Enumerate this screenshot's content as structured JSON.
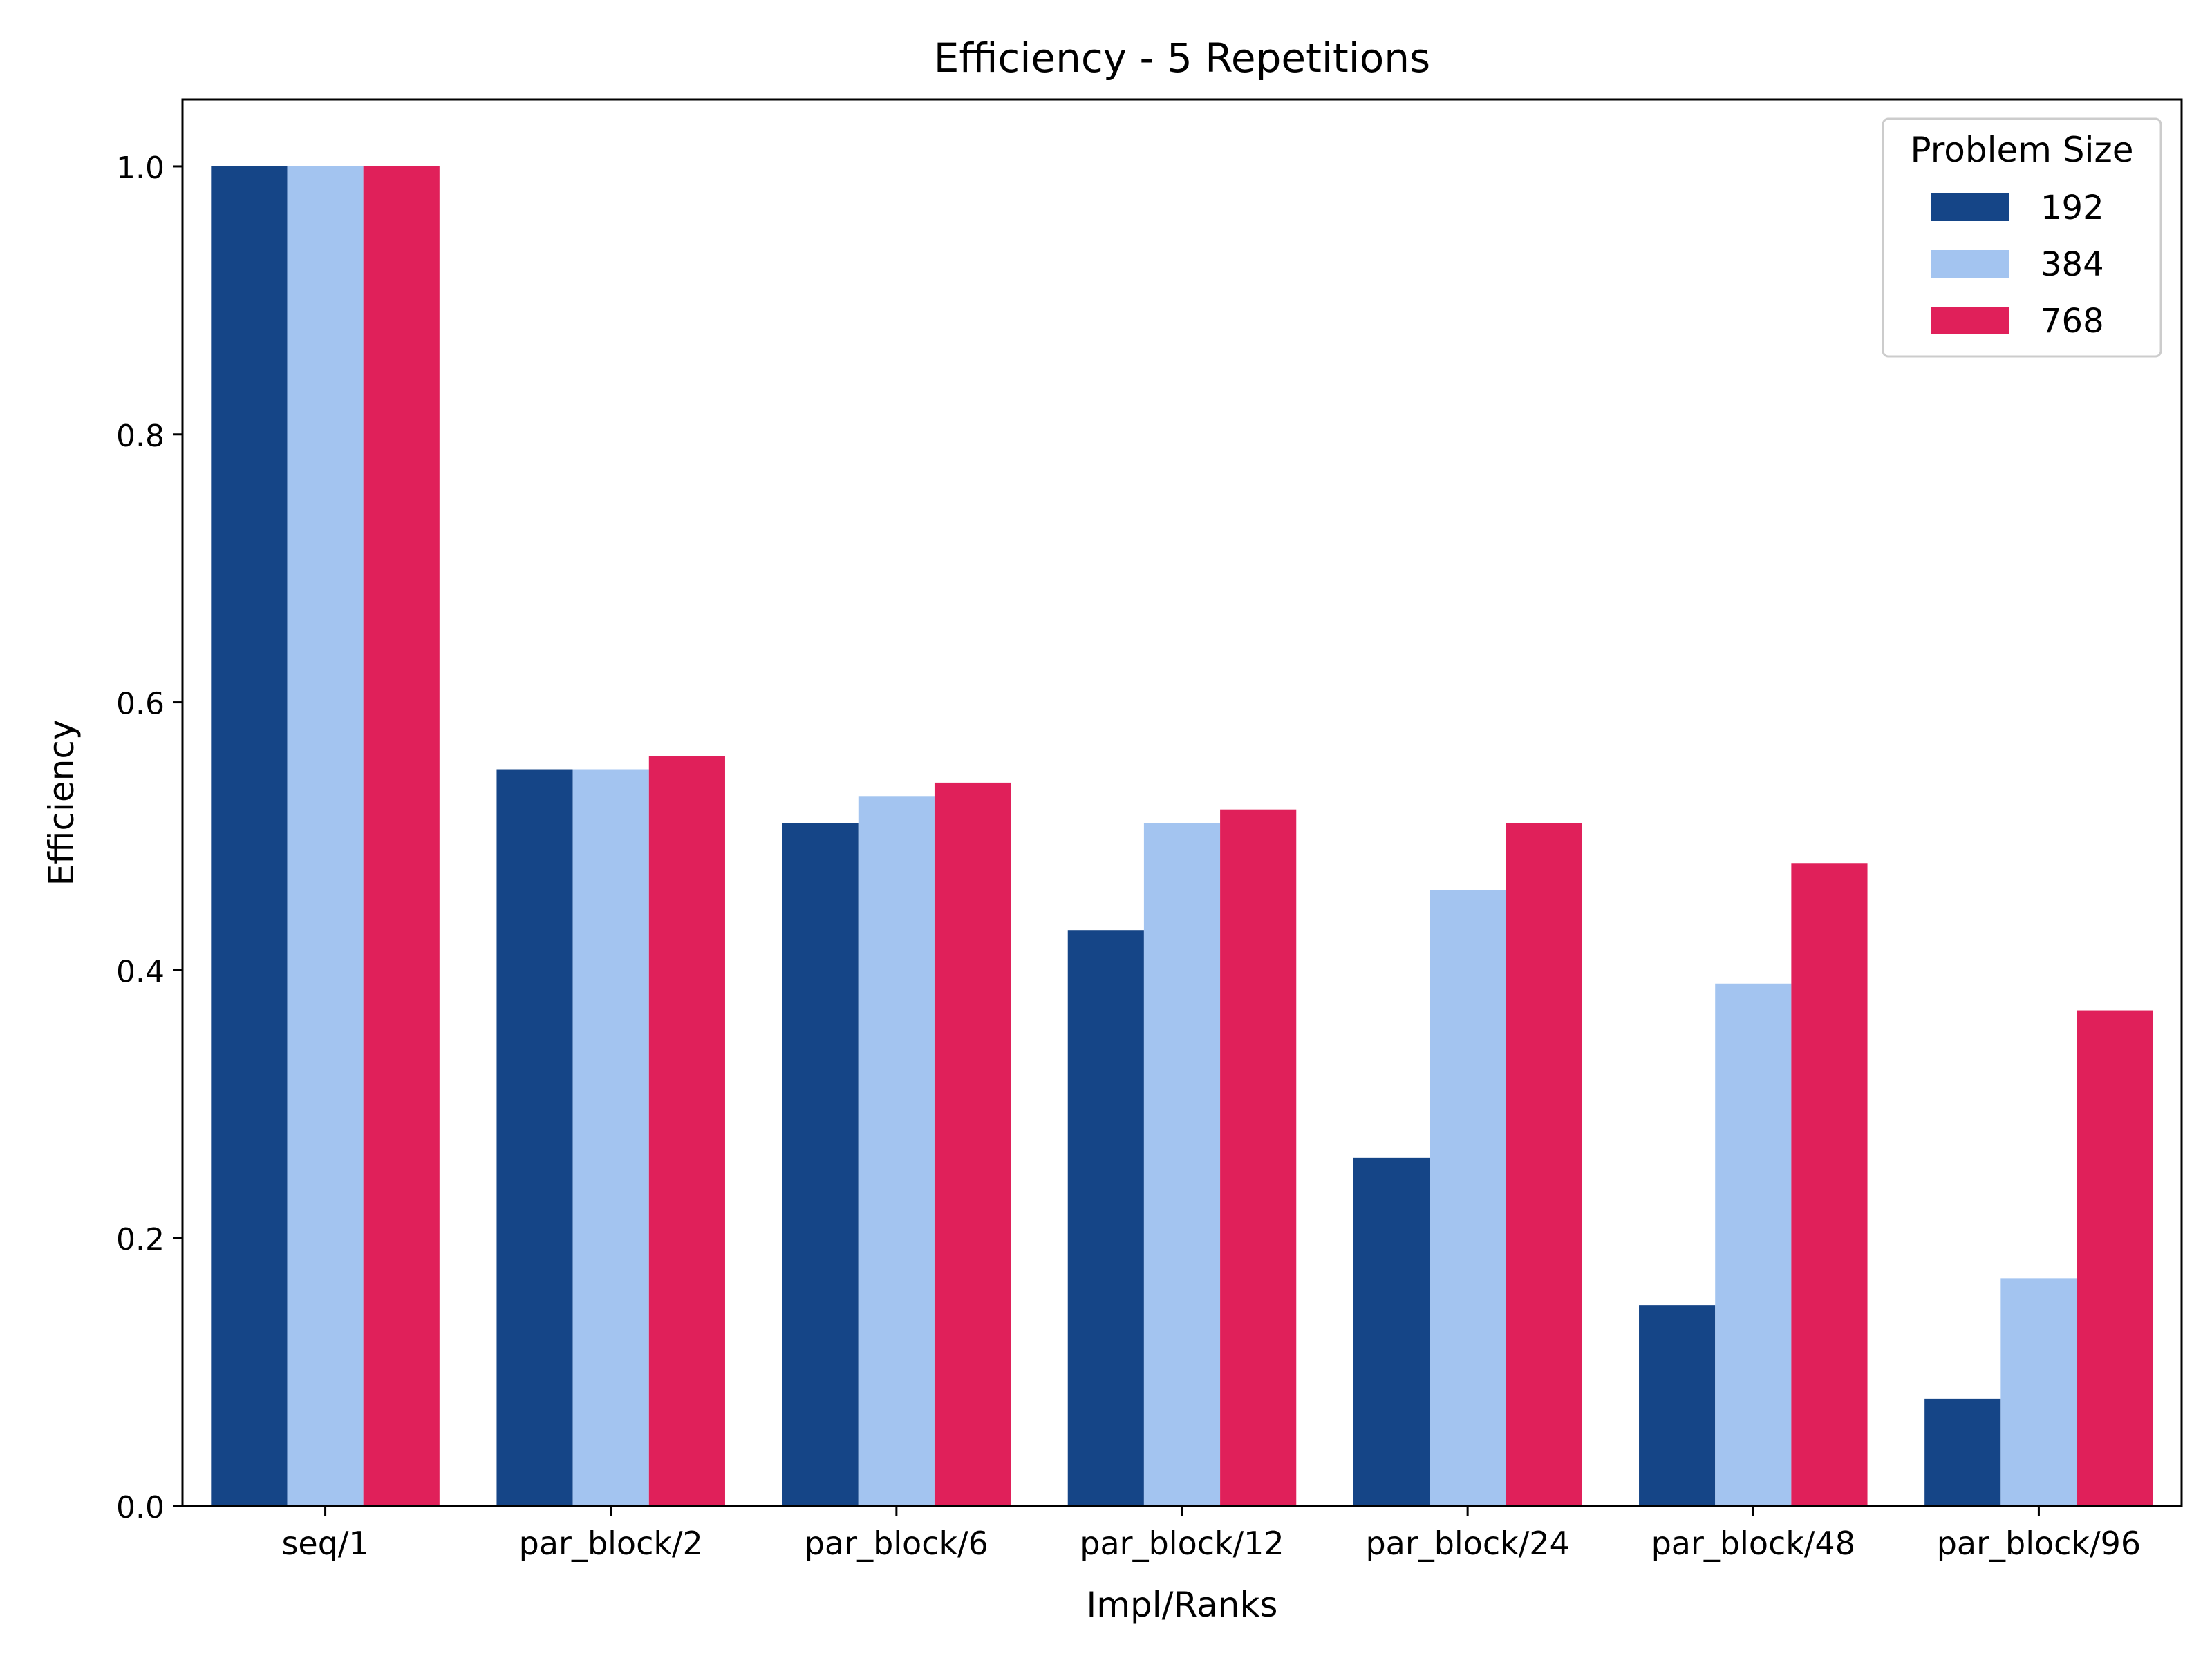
{
  "chart_data": {
    "type": "bar",
    "title": "Efficiency - 5 Repetitions",
    "xlabel": "Impl/Ranks",
    "ylabel": "Efficiency",
    "ylim": [
      0,
      1.05
    ],
    "yticks": [
      0.0,
      0.2,
      0.4,
      0.6,
      0.8,
      1.0
    ],
    "ytick_labels": [
      "0.0",
      "0.2",
      "0.4",
      "0.6",
      "0.8",
      "1.0"
    ],
    "grid": false,
    "categories": [
      "seq/1",
      "par_block/2",
      "par_block/6",
      "par_block/12",
      "par_block/24",
      "par_block/48",
      "par_block/96"
    ],
    "legend": {
      "title": "Problem Size",
      "placement": "top-right"
    },
    "series": [
      {
        "name": "192",
        "color": "#154587",
        "values": [
          1.0,
          0.55,
          0.51,
          0.43,
          0.26,
          0.15,
          0.08
        ]
      },
      {
        "name": "384",
        "color": "#a3c4f0",
        "values": [
          1.0,
          0.55,
          0.53,
          0.51,
          0.46,
          0.39,
          0.17
        ]
      },
      {
        "name": "768",
        "color": "#e0205a",
        "values": [
          1.0,
          0.56,
          0.54,
          0.52,
          0.51,
          0.48,
          0.37
        ]
      }
    ]
  }
}
